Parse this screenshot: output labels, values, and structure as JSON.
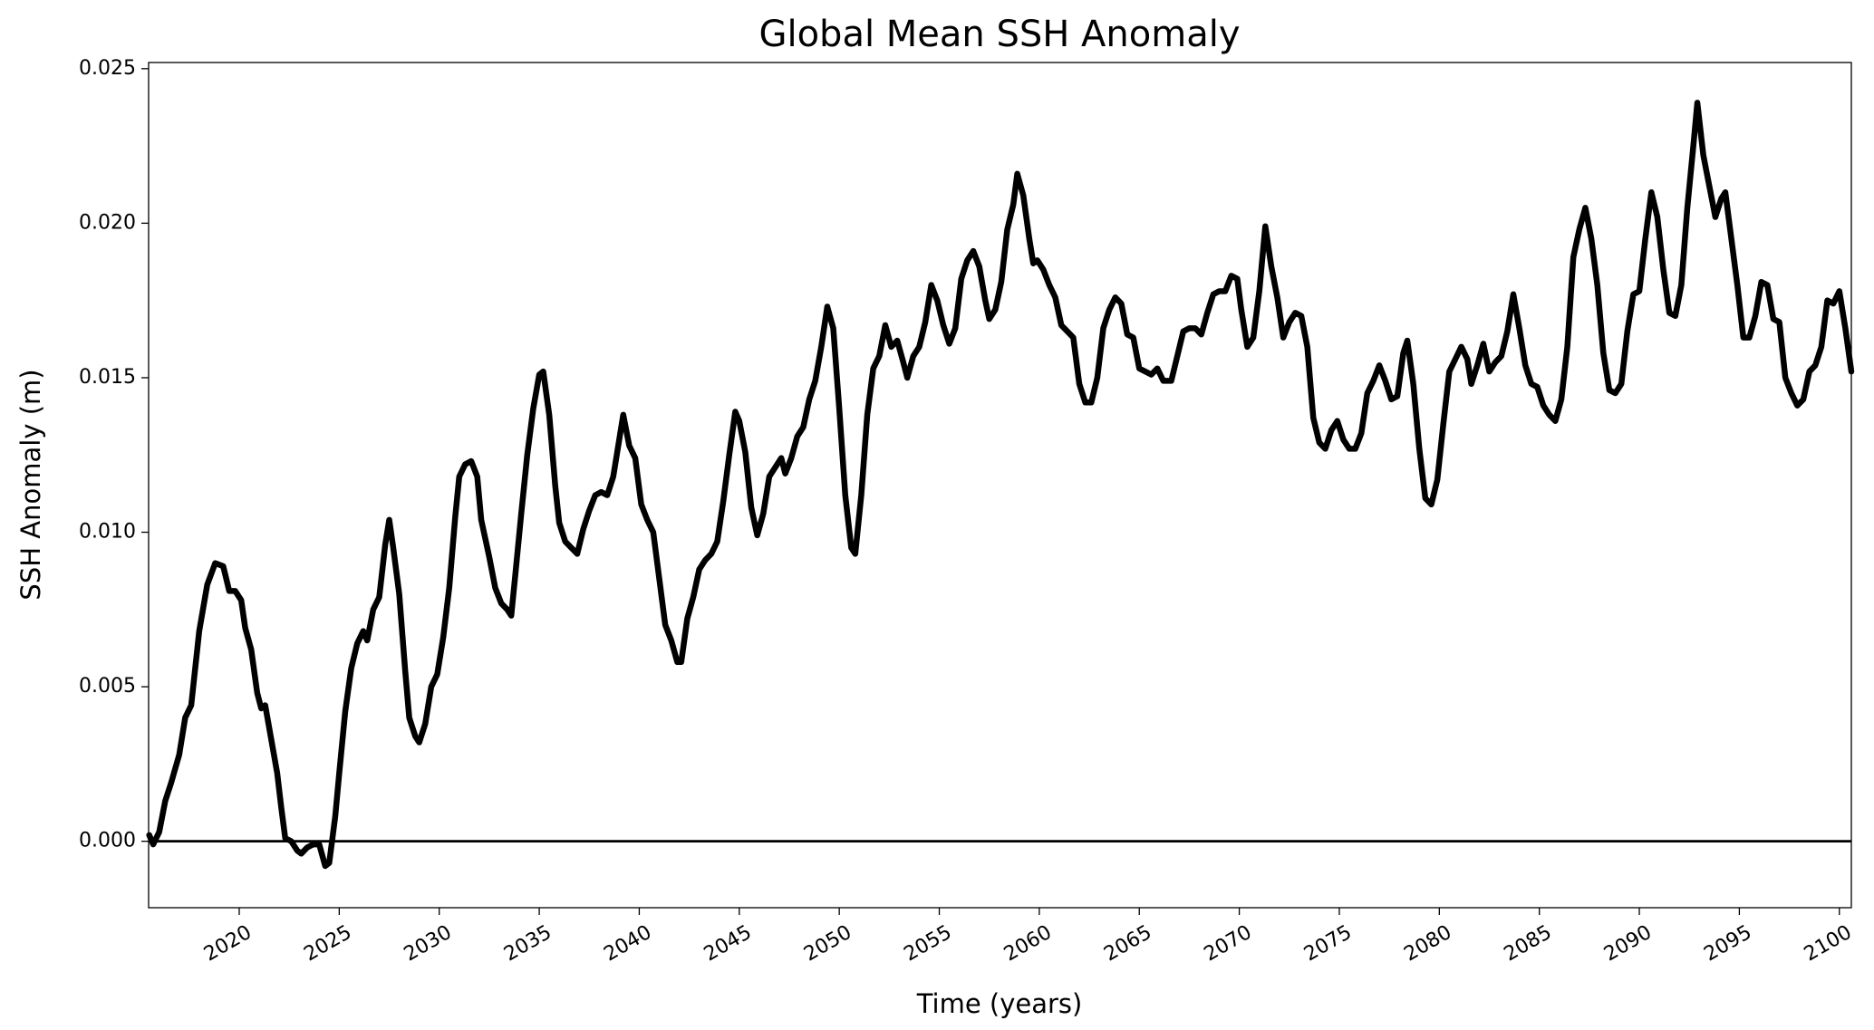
{
  "chart_data": {
    "type": "line",
    "title": "Global Mean SSH Anomaly",
    "xlabel": "Time (years)",
    "ylabel": "SSH Anomaly (m)",
    "xlim": [
      2015.47,
      2100.6
    ],
    "ylim": [
      -0.00215,
      0.0252
    ],
    "xticks": [
      2020,
      2025,
      2030,
      2035,
      2040,
      2045,
      2050,
      2055,
      2060,
      2065,
      2070,
      2075,
      2080,
      2085,
      2090,
      2095,
      2100
    ],
    "yticks": [
      {
        "value": 0,
        "label": "0.000"
      },
      {
        "value": 0.005,
        "label": "0.005"
      },
      {
        "value": 0.01,
        "label": "0.010"
      },
      {
        "value": 0.015,
        "label": "0.015"
      },
      {
        "value": 0.02,
        "label": "0.020"
      },
      {
        "value": 0.025,
        "label": "0.025"
      }
    ],
    "reference_line": 0,
    "color": "#000000",
    "grid": false,
    "x": [
      2015.5,
      2015.7,
      2016.0,
      2016.3,
      2016.6,
      2017.0,
      2017.3,
      2017.6,
      2018.0,
      2018.4,
      2018.8,
      2019.2,
      2019.5,
      2019.8,
      2020.1,
      2020.3,
      2020.6,
      2020.9,
      2021.1,
      2021.3,
      2021.6,
      2021.9,
      2022.1,
      2022.3,
      2022.6,
      2022.9,
      2023.1,
      2023.4,
      2023.7,
      2024.0,
      2024.3,
      2024.5,
      2024.8,
      2025.0,
      2025.3,
      2025.6,
      2025.9,
      2026.2,
      2026.4,
      2026.7,
      2027.0,
      2027.3,
      2027.5,
      2027.7,
      2028.0,
      2028.3,
      2028.5,
      2028.8,
      2029.0,
      2029.3,
      2029.6,
      2029.9,
      2030.2,
      2030.5,
      2030.8,
      2031.0,
      2031.3,
      2031.6,
      2031.9,
      2032.1,
      2032.3,
      2032.5,
      2032.8,
      2033.1,
      2033.4,
      2033.6,
      2033.8,
      2034.1,
      2034.4,
      2034.7,
      2035.0,
      2035.2,
      2035.5,
      2035.8,
      2036.0,
      2036.3,
      2036.6,
      2036.9,
      2037.2,
      2037.5,
      2037.8,
      2038.1,
      2038.4,
      2038.7,
      2039.0,
      2039.2,
      2039.5,
      2039.8,
      2040.1,
      2040.4,
      2040.7,
      2041.0,
      2041.3,
      2041.6,
      2041.9,
      2042.1,
      2042.4,
      2042.7,
      2043.0,
      2043.3,
      2043.6,
      2043.9,
      2044.2,
      2044.5,
      2044.8,
      2045.0,
      2045.3,
      2045.6,
      2045.9,
      2046.2,
      2046.5,
      2046.8,
      2047.1,
      2047.3,
      2047.6,
      2047.9,
      2048.2,
      2048.5,
      2048.8,
      2049.1,
      2049.4,
      2049.7,
      2050.0,
      2050.3,
      2050.6,
      2050.8,
      2051.1,
      2051.4,
      2051.7,
      2052.0,
      2052.3,
      2052.6,
      2052.9,
      2053.2,
      2053.4,
      2053.7,
      2054.0,
      2054.3,
      2054.6,
      2054.9,
      2055.2,
      2055.5,
      2055.8,
      2056.1,
      2056.4,
      2056.7,
      2057.0,
      2057.3,
      2057.5,
      2057.8,
      2058.1,
      2058.4,
      2058.7,
      2058.9,
      2059.2,
      2059.5,
      2059.7,
      2059.9,
      2060.2,
      2060.5,
      2060.8,
      2061.1,
      2061.4,
      2061.7,
      2062.0,
      2062.3,
      2062.6,
      2062.9,
      2063.2,
      2063.5,
      2063.8,
      2064.1,
      2064.4,
      2064.7,
      2065.0,
      2065.3,
      2065.6,
      2065.9,
      2066.2,
      2066.6,
      2066.9,
      2067.2,
      2067.5,
      2067.8,
      2068.1,
      2068.4,
      2068.7,
      2069.0,
      2069.3,
      2069.6,
      2069.9,
      2070.1,
      2070.4,
      2070.7,
      2071.0,
      2071.3,
      2071.6,
      2071.9,
      2072.2,
      2072.5,
      2072.8,
      2073.1,
      2073.4,
      2073.7,
      2074.0,
      2074.3,
      2074.6,
      2074.9,
      2075.2,
      2075.5,
      2075.8,
      2076.1,
      2076.4,
      2076.7,
      2077.0,
      2077.3,
      2077.6,
      2077.9,
      2078.2,
      2078.4,
      2078.7,
      2079.0,
      2079.3,
      2079.6,
      2079.9,
      2080.2,
      2080.5,
      2080.8,
      2081.1,
      2081.4,
      2081.6,
      2081.9,
      2082.2,
      2082.5,
      2082.8,
      2083.1,
      2083.4,
      2083.7,
      2084.0,
      2084.3,
      2084.6,
      2084.9,
      2085.2,
      2085.5,
      2085.8,
      2086.1,
      2086.4,
      2086.7,
      2087.0,
      2087.3,
      2087.6,
      2087.9,
      2088.2,
      2088.5,
      2088.8,
      2089.1,
      2089.4,
      2089.7,
      2090.0,
      2090.3,
      2090.6,
      2090.9,
      2091.2,
      2091.5,
      2091.8,
      2092.1,
      2092.4,
      2092.7,
      2092.9,
      2093.2,
      2093.5,
      2093.8,
      2094.1,
      2094.3,
      2094.6,
      2094.9,
      2095.2,
      2095.5,
      2095.8,
      2096.1,
      2096.4,
      2096.7,
      2097.0,
      2097.3,
      2097.6,
      2097.9,
      2098.2,
      2098.5,
      2098.8,
      2099.1,
      2099.4,
      2099.7,
      2100.0,
      2100.3,
      2100.6
    ],
    "values": [
      0.0002,
      -0.0001,
      0.0003,
      0.0013,
      0.0019,
      0.0028,
      0.004,
      0.0044,
      0.0068,
      0.0083,
      0.009,
      0.0089,
      0.0081,
      0.0081,
      0.0078,
      0.0069,
      0.0062,
      0.0048,
      0.0043,
      0.0044,
      0.0033,
      0.0022,
      0.0011,
      0.0001,
      0.0,
      -0.0003,
      -0.0004,
      -0.0002,
      -0.0001,
      -0.0001,
      -0.0008,
      -0.0007,
      0.0008,
      0.0022,
      0.0042,
      0.0056,
      0.0064,
      0.0068,
      0.0065,
      0.0075,
      0.0079,
      0.0096,
      0.0104,
      0.0095,
      0.008,
      0.0055,
      0.004,
      0.0034,
      0.0032,
      0.0038,
      0.005,
      0.0054,
      0.0066,
      0.0082,
      0.0105,
      0.0118,
      0.0122,
      0.0123,
      0.0118,
      0.0104,
      0.0098,
      0.0092,
      0.0082,
      0.0077,
      0.0075,
      0.0073,
      0.0086,
      0.0106,
      0.0125,
      0.014,
      0.0151,
      0.0152,
      0.0138,
      0.0115,
      0.0103,
      0.0097,
      0.0095,
      0.0093,
      0.0101,
      0.0107,
      0.0112,
      0.0113,
      0.0112,
      0.0118,
      0.013,
      0.0138,
      0.0128,
      0.0124,
      0.0109,
      0.0104,
      0.01,
      0.0085,
      0.007,
      0.0065,
      0.0058,
      0.0058,
      0.0072,
      0.0079,
      0.0088,
      0.0091,
      0.0093,
      0.0097,
      0.011,
      0.0125,
      0.0139,
      0.0136,
      0.0126,
      0.0108,
      0.0099,
      0.0106,
      0.0118,
      0.0121,
      0.0124,
      0.0119,
      0.0124,
      0.0131,
      0.0134,
      0.0143,
      0.0149,
      0.016,
      0.0173,
      0.0166,
      0.014,
      0.0112,
      0.0095,
      0.0093,
      0.0112,
      0.0138,
      0.0153,
      0.0157,
      0.0167,
      0.016,
      0.0162,
      0.0155,
      0.015,
      0.0157,
      0.016,
      0.0168,
      0.018,
      0.0175,
      0.0167,
      0.0161,
      0.0166,
      0.0182,
      0.0188,
      0.0191,
      0.0186,
      0.0175,
      0.0169,
      0.0172,
      0.0181,
      0.0198,
      0.0206,
      0.0216,
      0.0209,
      0.0195,
      0.0187,
      0.0188,
      0.0185,
      0.018,
      0.0176,
      0.0167,
      0.0165,
      0.0163,
      0.0148,
      0.0142,
      0.0142,
      0.015,
      0.0166,
      0.0172,
      0.0176,
      0.0174,
      0.0164,
      0.0163,
      0.0153,
      0.0152,
      0.0151,
      0.0153,
      0.0149,
      0.0149,
      0.0157,
      0.0165,
      0.0166,
      0.0166,
      0.0164,
      0.0171,
      0.0177,
      0.0178,
      0.0178,
      0.0183,
      0.0182,
      0.0172,
      0.016,
      0.0163,
      0.0178,
      0.0199,
      0.0186,
      0.0176,
      0.0163,
      0.0168,
      0.0171,
      0.017,
      0.016,
      0.0137,
      0.0129,
      0.0127,
      0.0133,
      0.0136,
      0.013,
      0.0127,
      0.0127,
      0.0132,
      0.0145,
      0.0149,
      0.0154,
      0.0149,
      0.0143,
      0.0144,
      0.0158,
      0.0162,
      0.0148,
      0.0127,
      0.0111,
      0.0109,
      0.0117,
      0.0135,
      0.0152,
      0.0156,
      0.016,
      0.0156,
      0.0148,
      0.0154,
      0.0161,
      0.0152,
      0.0155,
      0.0157,
      0.0165,
      0.0177,
      0.0166,
      0.0154,
      0.0148,
      0.0147,
      0.0141,
      0.0138,
      0.0136,
      0.0143,
      0.016,
      0.0189,
      0.0198,
      0.0205,
      0.0195,
      0.018,
      0.0158,
      0.0146,
      0.0145,
      0.0148,
      0.0165,
      0.0177,
      0.0178,
      0.0195,
      0.021,
      0.0202,
      0.0185,
      0.0171,
      0.017,
      0.018,
      0.0205,
      0.0225,
      0.0239,
      0.0222,
      0.0212,
      0.0202,
      0.0208,
      0.021,
      0.0195,
      0.018,
      0.0163,
      0.0163,
      0.017,
      0.0181,
      0.018,
      0.0169,
      0.0168,
      0.015,
      0.0145,
      0.0141,
      0.0143,
      0.0152,
      0.0154,
      0.016,
      0.0175,
      0.0174,
      0.0178,
      0.0166,
      0.0152
    ]
  }
}
